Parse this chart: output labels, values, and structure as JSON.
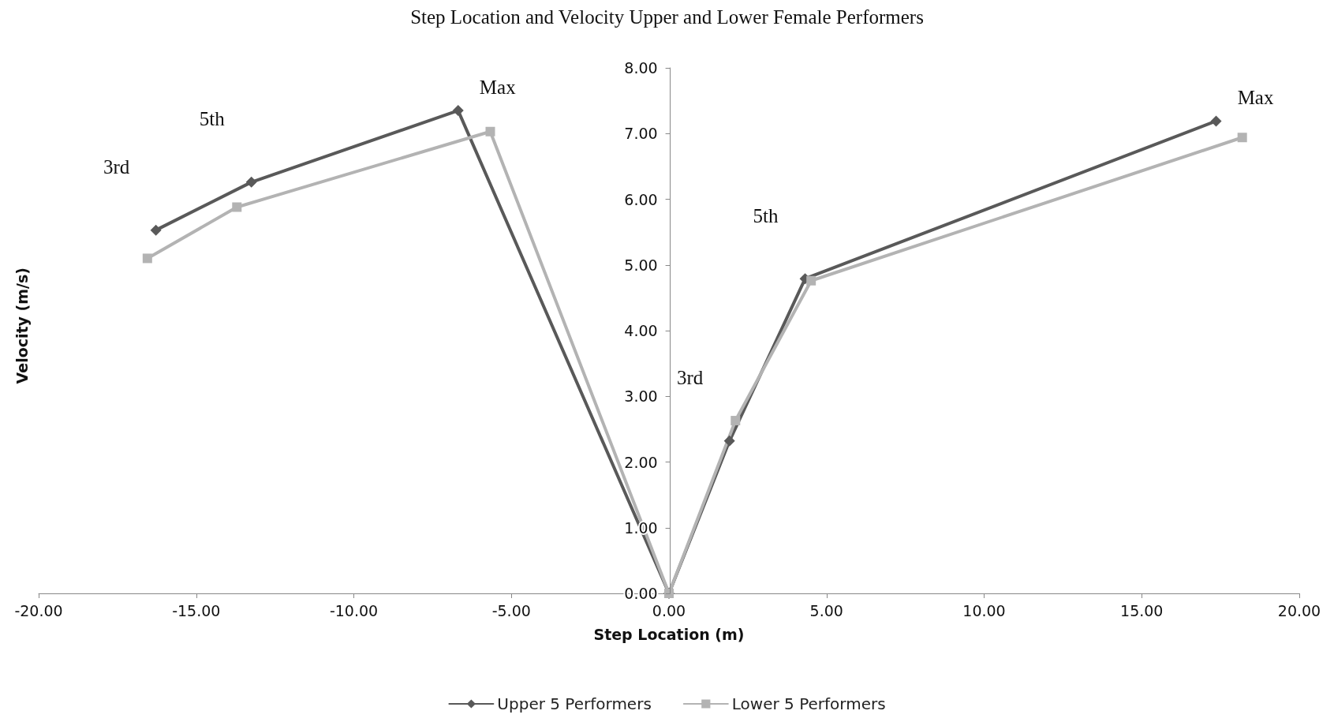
{
  "chart_data": {
    "type": "line",
    "title": "Step Location and Velocity Upper and Lower Female Performers",
    "xlabel": "Step Location (m)",
    "ylabel": "Velocity (m/s)",
    "series": [
      {
        "name": "Upper 5 Performers",
        "color": "#595959",
        "marker": "diamond",
        "x": [
          -16.28,
          -13.25,
          -6.69,
          0,
          1.92,
          4.32,
          17.36
        ],
        "values": [
          5.53,
          6.26,
          7.35,
          0,
          2.32,
          4.79,
          7.19
        ]
      },
      {
        "name": "Lower 5 Performers",
        "color": "#b3b3b3",
        "marker": "square",
        "x": [
          -16.55,
          -13.71,
          -5.67,
          0,
          2.11,
          4.51,
          18.19
        ],
        "values": [
          5.1,
          5.88,
          7.03,
          0,
          2.63,
          4.76,
          6.94
        ]
      }
    ],
    "xlim": [
      -20,
      20
    ],
    "xticks": [
      {
        "value": -20,
        "label": "-20.00"
      },
      {
        "value": -15,
        "label": "-15.00"
      },
      {
        "value": -10,
        "label": "-10.00"
      },
      {
        "value": -5,
        "label": "-5.00"
      },
      {
        "value": 0,
        "label": "0.00"
      },
      {
        "value": 5,
        "label": "5.00"
      },
      {
        "value": 10,
        "label": "10.00"
      },
      {
        "value": 15,
        "label": "15.00"
      },
      {
        "value": 20,
        "label": "20.00"
      }
    ],
    "ylim": [
      0,
      8
    ],
    "yticks": [
      {
        "value": 0,
        "label": "0.00"
      },
      {
        "value": 1,
        "label": "1.00"
      },
      {
        "value": 2,
        "label": "2.00"
      },
      {
        "value": 3,
        "label": "3.00"
      },
      {
        "value": 4,
        "label": "4.00"
      },
      {
        "value": 5,
        "label": "5.00"
      },
      {
        "value": 6,
        "label": "6.00"
      },
      {
        "value": 7,
        "label": "7.00"
      },
      {
        "value": 8,
        "label": "8.00"
      }
    ],
    "annotations": [
      "3rd",
      "5th",
      "Max",
      "3rd",
      "5th",
      "Max"
    ],
    "grid": false,
    "legend": "bottom",
    "line_style": "solid"
  }
}
